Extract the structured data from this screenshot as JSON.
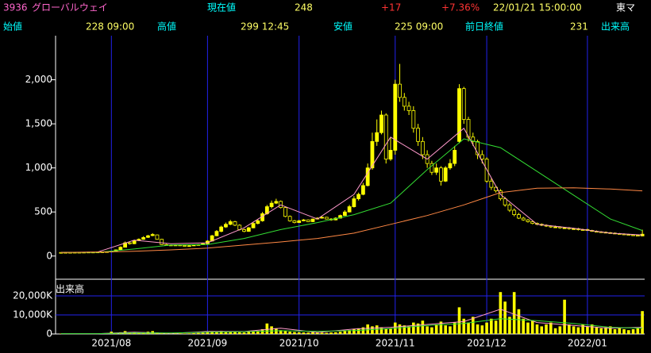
{
  "header": {
    "code": "3936",
    "name": "グローバルウェイ",
    "price_label": "現在値",
    "price": "248",
    "change": "+17",
    "change_pct": "+7.36%",
    "datetime": "22/01/21 15:00:00",
    "market": "東マ",
    "open_label": "始値",
    "open": "228 09:00",
    "high_label": "高値",
    "high": "299 12:45",
    "low_label": "安値",
    "low": "225 09:00",
    "prev_label": "前日終値",
    "prev": "231",
    "volume_label": "出来高"
  },
  "chart_data": [
    {
      "type": "candlestick",
      "up_color": "#ffff00",
      "down_color": "#000000",
      "edge_color": "#ffff00",
      "categories": [
        null,
        null,
        null,
        null,
        null,
        null,
        null,
        null,
        null,
        null,
        null,
        "2021/08",
        null,
        null,
        null,
        null,
        null,
        null,
        null,
        null,
        null,
        null,
        null,
        null,
        null,
        null,
        null,
        null,
        null,
        null,
        null,
        null,
        "2021/09",
        null,
        null,
        null,
        null,
        null,
        null,
        null,
        null,
        null,
        null,
        null,
        null,
        null,
        null,
        null,
        null,
        null,
        null,
        null,
        "2021/10",
        null,
        null,
        null,
        null,
        null,
        null,
        null,
        null,
        null,
        null,
        null,
        null,
        null,
        null,
        null,
        null,
        null,
        null,
        null,
        null,
        "2021/11",
        null,
        null,
        null,
        null,
        null,
        null,
        null,
        null,
        null,
        null,
        null,
        null,
        null,
        null,
        null,
        null,
        null,
        null,
        null,
        "2021/12",
        null,
        null,
        null,
        null,
        null,
        null,
        null,
        null,
        null,
        null,
        null,
        null,
        null,
        null,
        null,
        null,
        null,
        null,
        null,
        null,
        null,
        "2022/01",
        null,
        null,
        null,
        null,
        null,
        null,
        null,
        null,
        null,
        null,
        null,
        null
      ],
      "open": [
        41,
        40,
        42,
        41,
        43,
        42,
        44,
        45,
        44,
        46,
        48,
        50,
        55,
        72,
        100,
        150,
        140,
        176,
        190,
        212,
        232,
        240,
        190,
        130,
        125,
        120,
        125,
        120,
        115,
        118,
        125,
        130,
        140,
        170,
        230,
        280,
        330,
        360,
        390,
        350,
        300,
        280,
        320,
        370,
        400,
        480,
        560,
        600,
        620,
        550,
        450,
        400,
        380,
        400,
        410,
        390,
        420,
        430,
        440,
        420,
        410,
        430,
        460,
        500,
        560,
        650,
        700,
        800,
        1000,
        1300,
        1400,
        1600,
        1100,
        1200,
        1950,
        1800,
        1700,
        1650,
        1450,
        1300,
        1150,
        1050,
        950,
        1000,
        850,
        1000,
        1050,
        1300,
        1900,
        1550,
        1350,
        1300,
        1150,
        1100,
        850,
        780,
        740,
        650,
        580,
        520,
        470,
        430,
        410,
        390,
        370,
        360,
        350,
        340,
        330,
        330,
        320,
        320,
        310,
        310,
        300,
        300,
        290,
        280,
        275,
        270,
        265,
        260,
        255,
        250,
        245,
        240,
        235,
        228
      ],
      "high": [
        43,
        44,
        43,
        45,
        44,
        46,
        47,
        46,
        48,
        50,
        53,
        58,
        75,
        110,
        165,
        160,
        185,
        200,
        225,
        240,
        260,
        245,
        195,
        138,
        130,
        130,
        130,
        125,
        122,
        130,
        135,
        145,
        180,
        240,
        295,
        345,
        380,
        410,
        400,
        360,
        310,
        330,
        380,
        420,
        500,
        580,
        630,
        650,
        630,
        560,
        460,
        410,
        410,
        420,
        415,
        425,
        440,
        450,
        445,
        430,
        440,
        470,
        520,
        580,
        680,
        720,
        830,
        1050,
        1400,
        1550,
        1650,
        1620,
        1350,
        2000,
        2180,
        1850,
        1750,
        1700,
        1500,
        1350,
        1200,
        1080,
        1050,
        1020,
        1020,
        1100,
        1250,
        1950,
        1920,
        1580,
        1400,
        1320,
        1200,
        1120,
        880,
        800,
        760,
        670,
        600,
        540,
        490,
        445,
        420,
        400,
        380,
        370,
        360,
        350,
        345,
        340,
        330,
        330,
        320,
        320,
        310,
        310,
        298,
        290,
        282,
        278,
        272,
        268,
        262,
        258,
        252,
        248,
        242,
        299
      ],
      "low": [
        39,
        39,
        40,
        40,
        41,
        41,
        43,
        43,
        43,
        45,
        47,
        48,
        53,
        70,
        98,
        130,
        135,
        170,
        185,
        205,
        225,
        185,
        125,
        118,
        115,
        116,
        115,
        110,
        112,
        115,
        122,
        128,
        135,
        165,
        225,
        270,
        320,
        350,
        340,
        290,
        270,
        275,
        315,
        360,
        390,
        470,
        540,
        590,
        540,
        440,
        390,
        370,
        375,
        395,
        385,
        385,
        415,
        425,
        415,
        400,
        405,
        425,
        455,
        495,
        550,
        630,
        690,
        790,
        980,
        1250,
        1380,
        1050,
        1080,
        1150,
        1750,
        1650,
        1600,
        1400,
        1250,
        1100,
        1000,
        920,
        920,
        800,
        840,
        980,
        1020,
        1280,
        1500,
        1300,
        1250,
        1100,
        1050,
        830,
        750,
        720,
        630,
        560,
        500,
        450,
        420,
        400,
        380,
        360,
        350,
        340,
        330,
        320,
        320,
        310,
        310,
        300,
        300,
        290,
        290,
        285,
        275,
        270,
        265,
        260,
        255,
        250,
        245,
        240,
        235,
        230,
        225,
        225
      ],
      "close": [
        40,
        42,
        41,
        43,
        42,
        44,
        45,
        44,
        46,
        48,
        50,
        55,
        70,
        100,
        150,
        140,
        175,
        190,
        210,
        230,
        245,
        190,
        130,
        125,
        120,
        125,
        120,
        115,
        118,
        125,
        130,
        140,
        170,
        230,
        280,
        330,
        360,
        390,
        350,
        300,
        280,
        320,
        370,
        400,
        480,
        560,
        600,
        620,
        550,
        450,
        400,
        380,
        400,
        410,
        390,
        420,
        430,
        440,
        420,
        410,
        430,
        460,
        500,
        560,
        650,
        700,
        800,
        1000,
        1300,
        1400,
        1600,
        1100,
        1200,
        1950,
        1800,
        1700,
        1650,
        1450,
        1300,
        1150,
        1050,
        950,
        1000,
        850,
        1000,
        1050,
        1200,
        1900,
        1550,
        1350,
        1300,
        1150,
        1100,
        850,
        780,
        740,
        650,
        580,
        520,
        470,
        430,
        410,
        390,
        370,
        360,
        350,
        340,
        330,
        330,
        320,
        320,
        310,
        310,
        300,
        300,
        290,
        280,
        275,
        270,
        265,
        260,
        255,
        250,
        245,
        240,
        235,
        231,
        248
      ],
      "lines": [
        {
          "color": "#ff99cc",
          "x": [
            0,
            8,
            16,
            24,
            32,
            40,
            48,
            56,
            64,
            72,
            80,
            88,
            96,
            104,
            112,
            120,
            127
          ],
          "values": [
            42,
            46,
            180,
            140,
            150,
            320,
            580,
            420,
            700,
            1350,
            1100,
            1450,
            700,
            360,
            315,
            260,
            238
          ]
        },
        {
          "color": "#33dd33",
          "x": [
            0,
            8,
            16,
            24,
            32,
            40,
            48,
            56,
            64,
            72,
            80,
            88,
            96,
            104,
            112,
            120,
            127
          ],
          "values": [
            40,
            42,
            80,
            125,
            130,
            200,
            300,
            380,
            470,
            600,
            980,
            1330,
            1230,
            960,
            690,
            420,
            290
          ]
        },
        {
          "color": "#ff8844",
          "x": [
            0,
            8,
            16,
            24,
            32,
            40,
            48,
            56,
            64,
            72,
            80,
            88,
            96,
            104,
            112,
            120,
            127
          ],
          "values": [
            40,
            45,
            55,
            70,
            90,
            125,
            160,
            200,
            260,
            360,
            460,
            580,
            720,
            770,
            775,
            760,
            740
          ]
        }
      ],
      "ylim": [
        -200,
        2500
      ],
      "yticks": [
        0,
        500,
        {
          "value": 1000,
          "label": "1,000"
        },
        {
          "value": 1500,
          "label": "1,500"
        },
        {
          "value": 2000,
          "label": "2,000"
        }
      ]
    },
    {
      "type": "bar",
      "title": "出来高",
      "color": "#ffff00",
      "values": [
        200,
        150,
        180,
        200,
        150,
        160,
        200,
        180,
        170,
        200,
        300,
        1200,
        600,
        900,
        1500,
        800,
        1000,
        700,
        900,
        1200,
        1500,
        800,
        500,
        400,
        300,
        350,
        300,
        250,
        300,
        400,
        500,
        600,
        1200,
        1500,
        1300,
        1600,
        1200,
        1400,
        1000,
        900,
        800,
        1100,
        1300,
        1500,
        2500,
        5500,
        4000,
        3000,
        2000,
        1500,
        1200,
        1000,
        900,
        800,
        700,
        900,
        800,
        700,
        600,
        800,
        900,
        1200,
        1500,
        2000,
        2500,
        3000,
        3500,
        5000,
        4000,
        4500,
        3500,
        2500,
        3000,
        6000,
        5000,
        4500,
        4000,
        6000,
        5500,
        7000,
        4000,
        3500,
        5000,
        6500,
        4500,
        4000,
        6000,
        14000,
        8000,
        6000,
        9000,
        5000,
        4500,
        6000,
        8000,
        7000,
        22000,
        17000,
        9000,
        22000,
        13000,
        8000,
        6000,
        7000,
        5000,
        4000,
        5000,
        6000,
        3000,
        4000,
        18000,
        5000,
        4000,
        3500,
        5000,
        4000,
        5000,
        3500,
        3000,
        3500,
        4000,
        2500,
        3000,
        2500,
        2000,
        2500,
        3000,
        12000
      ],
      "lines": [
        {
          "color": "#ff99cc",
          "x": [
            0,
            8,
            16,
            24,
            32,
            40,
            48,
            56,
            64,
            72,
            80,
            88,
            96,
            104,
            112,
            120,
            127
          ],
          "values": [
            180,
            170,
            900,
            320,
            1300,
            1300,
            3000,
            800,
            2600,
            3500,
            5000,
            6500,
            13000,
            6000,
            4500,
            3000,
            3500
          ]
        },
        {
          "color": "#33dd33",
          "x": [
            0,
            8,
            16,
            24,
            32,
            40,
            48,
            56,
            64,
            72,
            80,
            88,
            96,
            104,
            112,
            120,
            127
          ],
          "values": [
            150,
            160,
            600,
            500,
            900,
            1200,
            1700,
            1400,
            1800,
            2800,
            4500,
            5500,
            8000,
            7000,
            5500,
            3500,
            3000
          ]
        }
      ],
      "ylim": [
        0,
        28750
      ],
      "yticks": [
        0,
        {
          "value": 10000,
          "label": "10,000K"
        },
        {
          "value": 20000,
          "label": "20,000K"
        }
      ]
    }
  ]
}
